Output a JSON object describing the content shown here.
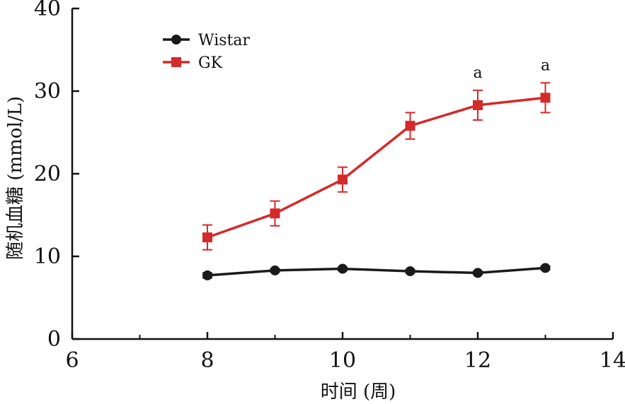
{
  "chart_data": {
    "type": "line",
    "xlabel": "时间 (周)",
    "ylabel": "随机血糖 (mmol/L)",
    "xlim": [
      6,
      14
    ],
    "ylim": [
      0,
      40
    ],
    "x_ticks": [
      "6",
      "8",
      "10",
      "12",
      "14"
    ],
    "y_ticks": [
      "0",
      "10",
      "20",
      "30",
      "40"
    ],
    "x_minor_ticks": [
      7,
      9,
      11,
      13
    ],
    "grid": false,
    "legend_position": "top-left",
    "series": [
      {
        "name": "Wistar",
        "color": "#1a1a1a",
        "marker": "circle",
        "x": [
          8,
          9,
          10,
          11,
          12,
          13
        ],
        "y": [
          7.7,
          8.3,
          8.5,
          8.2,
          8.0,
          8.6
        ],
        "error": [
          0.3,
          0.2,
          0.2,
          0.2,
          0.2,
          0.2
        ]
      },
      {
        "name": "GK",
        "color": "#d42a2a",
        "marker": "square",
        "x": [
          8,
          9,
          10,
          11,
          12,
          13
        ],
        "y": [
          12.3,
          15.2,
          19.3,
          25.8,
          28.3,
          29.2
        ],
        "error": [
          1.5,
          1.5,
          1.5,
          1.6,
          1.8,
          1.8
        ]
      }
    ],
    "annotations": [
      {
        "text": "a",
        "x": 12,
        "y": 28.3
      },
      {
        "text": "a",
        "x": 13,
        "y": 29.2
      }
    ]
  }
}
